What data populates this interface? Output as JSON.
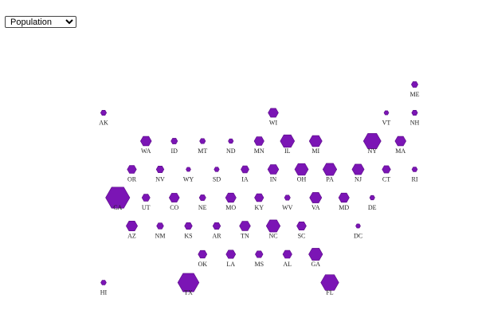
{
  "metric_select": {
    "selected": "Population",
    "options": [
      "Population"
    ]
  },
  "colors": {
    "hex_fill": "#7b15b5",
    "hex_stroke": "#5a0c86",
    "label": "#222222"
  },
  "states": [
    {
      "code": "ME",
      "col": 11,
      "row": 0,
      "size": 1.5
    },
    {
      "code": "AK",
      "col": 0,
      "row": 1,
      "size": 1.3
    },
    {
      "code": "WI",
      "col": 6,
      "row": 1,
      "size": 2.5
    },
    {
      "code": "VT",
      "col": 10,
      "row": 1,
      "size": 1
    },
    {
      "code": "NH",
      "col": 11,
      "row": 1,
      "size": 1.3
    },
    {
      "code": "WA",
      "col": 1,
      "row": 2,
      "size": 2.7
    },
    {
      "code": "ID",
      "col": 2,
      "row": 2,
      "size": 1.5
    },
    {
      "code": "MT",
      "col": 3,
      "row": 2,
      "size": 1.3
    },
    {
      "code": "ND",
      "col": 4,
      "row": 2,
      "size": 1.1
    },
    {
      "code": "MN",
      "col": 5,
      "row": 2,
      "size": 2.4
    },
    {
      "code": "IL",
      "col": 6,
      "row": 2,
      "size": 3.6
    },
    {
      "code": "MI",
      "col": 7,
      "row": 2,
      "size": 3.2
    },
    {
      "code": "NY",
      "col": 9,
      "row": 2,
      "size": 4.5
    },
    {
      "code": "MA",
      "col": 10,
      "row": 2,
      "size": 2.7
    },
    {
      "code": "OR",
      "col": 1,
      "row": 3,
      "size": 2.2
    },
    {
      "code": "NV",
      "col": 2,
      "row": 3,
      "size": 1.8
    },
    {
      "code": "WY",
      "col": 3,
      "row": 3,
      "size": 1
    },
    {
      "code": "SD",
      "col": 4,
      "row": 3,
      "size": 1.1
    },
    {
      "code": "IA",
      "col": 5,
      "row": 3,
      "size": 1.9
    },
    {
      "code": "IN",
      "col": 6,
      "row": 3,
      "size": 2.7
    },
    {
      "code": "OH",
      "col": 7,
      "row": 3,
      "size": 3.4
    },
    {
      "code": "PA",
      "col": 8,
      "row": 3,
      "size": 3.5
    },
    {
      "code": "NJ",
      "col": 9,
      "row": 3,
      "size": 3
    },
    {
      "code": "CT",
      "col": 10,
      "row": 3,
      "size": 2
    },
    {
      "code": "RI",
      "col": 11,
      "row": 3,
      "size": 1.2
    },
    {
      "code": "CA",
      "col": 0,
      "row": 4,
      "size": 6.3
    },
    {
      "code": "UT",
      "col": 1,
      "row": 4,
      "size": 1.9
    },
    {
      "code": "CO",
      "col": 2,
      "row": 4,
      "size": 2.5
    },
    {
      "code": "NE",
      "col": 3,
      "row": 4,
      "size": 1.5
    },
    {
      "code": "MO",
      "col": 4,
      "row": 4,
      "size": 2.6
    },
    {
      "code": "KY",
      "col": 5,
      "row": 4,
      "size": 2.2
    },
    {
      "code": "WV",
      "col": 6,
      "row": 4,
      "size": 1.3
    },
    {
      "code": "VA",
      "col": 7,
      "row": 4,
      "size": 3
    },
    {
      "code": "MD",
      "col": 8,
      "row": 4,
      "size": 2.6
    },
    {
      "code": "DE",
      "col": 9,
      "row": 4,
      "size": 1.1
    },
    {
      "code": "AZ",
      "col": 1,
      "row": 5,
      "size": 2.8
    },
    {
      "code": "NM",
      "col": 2,
      "row": 5,
      "size": 1.6
    },
    {
      "code": "KS",
      "col": 3,
      "row": 5,
      "size": 1.8
    },
    {
      "code": "AR",
      "col": 4,
      "row": 5,
      "size": 1.8
    },
    {
      "code": "TN",
      "col": 5,
      "row": 5,
      "size": 2.7
    },
    {
      "code": "NC",
      "col": 6,
      "row": 5,
      "size": 3.5
    },
    {
      "code": "SC",
      "col": 7,
      "row": 5,
      "size": 2.3
    },
    {
      "code": "DC",
      "col": 9,
      "row": 5,
      "size": 1
    },
    {
      "code": "OK",
      "col": 3,
      "row": 6,
      "size": 2.1
    },
    {
      "code": "LA",
      "col": 4,
      "row": 6,
      "size": 2.3
    },
    {
      "code": "MS",
      "col": 5,
      "row": 6,
      "size": 1.8
    },
    {
      "code": "AL",
      "col": 6,
      "row": 6,
      "size": 2.2
    },
    {
      "code": "GA",
      "col": 7,
      "row": 6,
      "size": 3.5
    },
    {
      "code": "HI",
      "col": 0,
      "row": 7,
      "size": 1.2
    },
    {
      "code": "TX",
      "col": 3,
      "row": 7,
      "size": 5.5
    },
    {
      "code": "FL",
      "col": 8,
      "row": 7,
      "size": 4.6
    }
  ]
}
